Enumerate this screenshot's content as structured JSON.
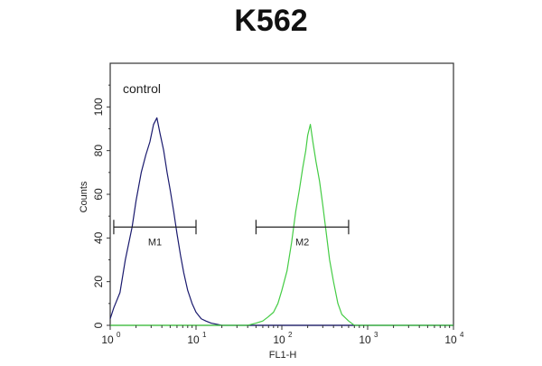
{
  "chart_data": {
    "type": "line",
    "title": "K562",
    "xlabel": "FL1-H",
    "ylabel": "Counts",
    "x_scale": "log",
    "xlim": [
      1,
      10000
    ],
    "ylim": [
      0,
      120
    ],
    "grid": false,
    "x_tick_labels": [
      {
        "base": "10",
        "exp": "0"
      },
      {
        "base": "10",
        "exp": "1"
      },
      {
        "base": "10",
        "exp": "2"
      },
      {
        "base": "10",
        "exp": "3"
      },
      {
        "base": "10",
        "exp": "4"
      }
    ],
    "y_ticks": [
      0,
      20,
      40,
      60,
      80,
      100
    ],
    "y_tick_labels": [
      "0",
      "20",
      "40",
      "60",
      "80",
      "100"
    ],
    "annotation": "control",
    "series": [
      {
        "color": "#1a1a6e",
        "x": [
          1,
          1.1,
          1.3,
          1.5,
          1.8,
          2.0,
          2.3,
          2.6,
          2.9,
          3.2,
          3.5,
          3.8,
          4.2,
          4.6,
          5.0,
          5.5,
          6.0,
          6.6,
          7.2,
          8.0,
          9.0,
          10.0,
          11.5,
          13.0,
          15.0,
          20.0,
          10000
        ],
        "y": [
          3,
          8,
          15,
          30,
          45,
          57,
          70,
          78,
          84,
          92,
          95,
          88,
          80,
          70,
          62,
          52,
          42,
          32,
          24,
          16,
          10,
          6,
          3,
          2,
          1,
          0,
          0
        ]
      },
      {
        "color": "#44cc44",
        "x": [
          1,
          40,
          50,
          60,
          70,
          80,
          90,
          100,
          115,
          130,
          145,
          160,
          175,
          190,
          200,
          215,
          230,
          250,
          275,
          300,
          330,
          360,
          400,
          450,
          500,
          600,
          700,
          10000
        ],
        "y": [
          0,
          0,
          1,
          2,
          4,
          6,
          10,
          16,
          25,
          38,
          52,
          62,
          72,
          80,
          87,
          92,
          84,
          75,
          66,
          55,
          42,
          30,
          20,
          10,
          5,
          2,
          0,
          0
        ]
      }
    ],
    "gates": [
      {
        "label": "M1",
        "x_start": 1.1,
        "x_end": 10
      },
      {
        "label": "M2",
        "x_start": 50,
        "x_end": 600
      }
    ],
    "gate_level": 45
  }
}
